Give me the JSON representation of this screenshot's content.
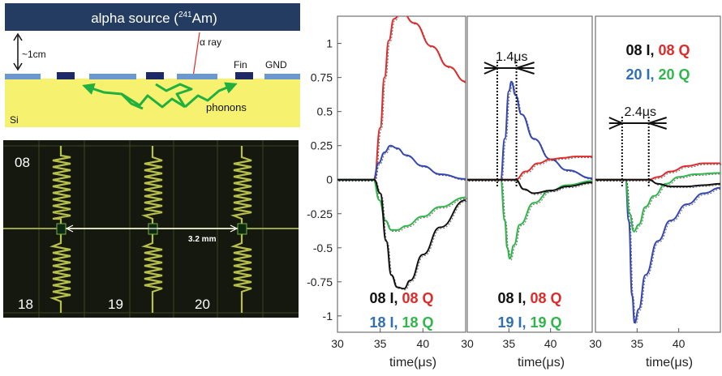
{
  "schematic": {
    "source_label_prefix": "alpha source (",
    "source_isotope_mass": "241",
    "source_isotope_symbol": "Am",
    "source_label_suffix": ")",
    "distance_label": "~1cm",
    "ray_label": "α ray",
    "fin_label": "Fin",
    "gnd_label": "GND",
    "phonons_label": "phonons",
    "substrate_label": "Si"
  },
  "micrograph": {
    "resonator_labels": [
      "08",
      "18",
      "19",
      "20"
    ],
    "spacing_label": "3.2 mm"
  },
  "chart_data": [
    {
      "type": "line",
      "xlabel": "time(μs)",
      "x_ticks": [
        30,
        35,
        40
      ],
      "y_ticks": [
        1,
        0.75,
        0.5,
        0.25,
        0,
        -0.25,
        -0.5,
        -0.75,
        -1
      ],
      "xlim": [
        30,
        45
      ],
      "ylim": [
        -1.12,
        1.2
      ],
      "legend": [
        [
          {
            "text": "08 I,",
            "color": "#111111"
          },
          {
            "text": "08 Q",
            "color": "#e02a2a"
          }
        ],
        [
          {
            "text": "18 I,",
            "color": "#2f6fb4"
          },
          {
            "text": "18 Q",
            "color": "#2fb64a"
          }
        ]
      ],
      "series": [
        {
          "color": "#e02a2a",
          "points": [
            [
              30,
              0
            ],
            [
              34.3,
              0
            ],
            [
              35,
              0.38
            ],
            [
              35.5,
              0.75
            ],
            [
              36,
              1.02
            ],
            [
              36.6,
              1.18
            ],
            [
              37.5,
              1.23
            ],
            [
              39,
              1.15
            ],
            [
              41,
              0.98
            ],
            [
              43,
              0.83
            ],
            [
              45,
              0.72
            ]
          ]
        },
        {
          "color": "#3346b3",
          "points": [
            [
              30,
              0
            ],
            [
              34.2,
              0
            ],
            [
              34.8,
              0.12
            ],
            [
              35.5,
              0.2
            ],
            [
              36.2,
              0.25
            ],
            [
              37,
              0.23
            ],
            [
              38,
              0.18
            ],
            [
              40,
              0.1
            ],
            [
              42,
              0.04
            ],
            [
              45,
              0.005
            ]
          ]
        },
        {
          "color": "#2fb64a",
          "points": [
            [
              30,
              0
            ],
            [
              34.2,
              0
            ],
            [
              34.9,
              -0.15
            ],
            [
              35.6,
              -0.3
            ],
            [
              36.3,
              -0.37
            ],
            [
              37,
              -0.37
            ],
            [
              38,
              -0.34
            ],
            [
              40,
              -0.27
            ],
            [
              42,
              -0.2
            ],
            [
              45,
              -0.13
            ]
          ]
        },
        {
          "color": "#111111",
          "points": [
            [
              30,
              0
            ],
            [
              34.3,
              0
            ],
            [
              35,
              -0.1
            ],
            [
              35.7,
              -0.45
            ],
            [
              36.3,
              -0.7
            ],
            [
              37,
              -0.79
            ],
            [
              37.8,
              -0.8
            ],
            [
              38.5,
              -0.74
            ],
            [
              40,
              -0.55
            ],
            [
              42,
              -0.35
            ],
            [
              45,
              -0.15
            ]
          ]
        }
      ]
    },
    {
      "type": "line",
      "xlabel": "time(μs)",
      "x_ticks": [
        30,
        35,
        40
      ],
      "xlim": [
        30,
        45
      ],
      "ylim": [
        -1.12,
        1.2
      ],
      "annotation": "1.4μs",
      "interval": [
        33.6,
        35.9
      ],
      "legend": [
        [
          {
            "text": "08 I,",
            "color": "#111111"
          },
          {
            "text": "08 Q",
            "color": "#e02a2a"
          }
        ],
        [
          {
            "text": "19 I,",
            "color": "#2f6fb4"
          },
          {
            "text": "19 Q",
            "color": "#2fb64a"
          }
        ]
      ],
      "series": [
        {
          "color": "#3346b3",
          "points": [
            [
              30,
              0
            ],
            [
              34,
              0
            ],
            [
              34.5,
              0.3
            ],
            [
              35,
              0.65
            ],
            [
              35.3,
              0.72
            ],
            [
              35.8,
              0.62
            ],
            [
              36.5,
              0.48
            ],
            [
              38,
              0.3
            ],
            [
              40,
              0.15
            ],
            [
              42,
              0.07
            ],
            [
              45,
              0.01
            ]
          ]
        },
        {
          "color": "#2fb64a",
          "points": [
            [
              30,
              0
            ],
            [
              34,
              0
            ],
            [
              34.5,
              -0.3
            ],
            [
              34.8,
              -0.5
            ],
            [
              35.1,
              -0.58
            ],
            [
              35.6,
              -0.48
            ],
            [
              36.3,
              -0.33
            ],
            [
              38,
              -0.17
            ],
            [
              40,
              -0.08
            ],
            [
              42,
              -0.04
            ],
            [
              45,
              -0.01
            ]
          ]
        },
        {
          "color": "#e02a2a",
          "points": [
            [
              30,
              0
            ],
            [
              35.8,
              0
            ],
            [
              37,
              0.06
            ],
            [
              38.5,
              0.12
            ],
            [
              40,
              0.15
            ],
            [
              41.5,
              0.16
            ],
            [
              43,
              0.17
            ],
            [
              45,
              0.17
            ]
          ]
        },
        {
          "color": "#111111",
          "points": [
            [
              30,
              0
            ],
            [
              35.8,
              0
            ],
            [
              36.8,
              -0.07
            ],
            [
              38,
              -0.1
            ],
            [
              40,
              -0.08
            ],
            [
              42,
              -0.05
            ],
            [
              45,
              -0.02
            ]
          ]
        }
      ]
    },
    {
      "type": "line",
      "xlabel": "time(μs)",
      "x_ticks": [
        30,
        35,
        40
      ],
      "xlim": [
        30,
        45
      ],
      "ylim": [
        -1.12,
        1.2
      ],
      "annotation": "2.4μs",
      "interval": [
        33.2,
        36.4
      ],
      "legend": [
        [
          {
            "text": "08 I,",
            "color": "#111111"
          },
          {
            "text": "08 Q",
            "color": "#e02a2a"
          }
        ],
        [
          {
            "text": "20 I,",
            "color": "#2f6fb4"
          },
          {
            "text": "20 Q",
            "color": "#2fb64a"
          }
        ]
      ],
      "series": [
        {
          "color": "#3346b3",
          "points": [
            [
              30,
              0
            ],
            [
              33.6,
              0
            ],
            [
              34,
              -0.3
            ],
            [
              34.4,
              -0.85
            ],
            [
              34.7,
              -1.05
            ],
            [
              35.2,
              -0.95
            ],
            [
              36,
              -0.7
            ],
            [
              37.5,
              -0.45
            ],
            [
              39,
              -0.3
            ],
            [
              41,
              -0.18
            ],
            [
              43,
              -0.1
            ],
            [
              45,
              -0.06
            ]
          ]
        },
        {
          "color": "#2fb64a",
          "points": [
            [
              30,
              0
            ],
            [
              33.6,
              0
            ],
            [
              34.1,
              -0.25
            ],
            [
              34.6,
              -0.38
            ],
            [
              35.2,
              -0.33
            ],
            [
              36,
              -0.2
            ],
            [
              37,
              -0.12
            ],
            [
              38.5,
              -0.03
            ],
            [
              40,
              0.02
            ],
            [
              42,
              0.04
            ],
            [
              45,
              0.05
            ]
          ]
        },
        {
          "color": "#e02a2a",
          "points": [
            [
              30,
              0
            ],
            [
              36.4,
              0
            ],
            [
              37.5,
              0.02
            ],
            [
              39,
              0.06
            ],
            [
              41,
              0.1
            ],
            [
              43,
              0.12
            ],
            [
              45,
              0.12
            ]
          ]
        },
        {
          "color": "#111111",
          "points": [
            [
              30,
              0
            ],
            [
              36.4,
              0
            ],
            [
              37.5,
              -0.03
            ],
            [
              39,
              -0.05
            ],
            [
              41,
              -0.05
            ],
            [
              43,
              -0.04
            ],
            [
              45,
              -0.03
            ]
          ]
        }
      ]
    }
  ]
}
